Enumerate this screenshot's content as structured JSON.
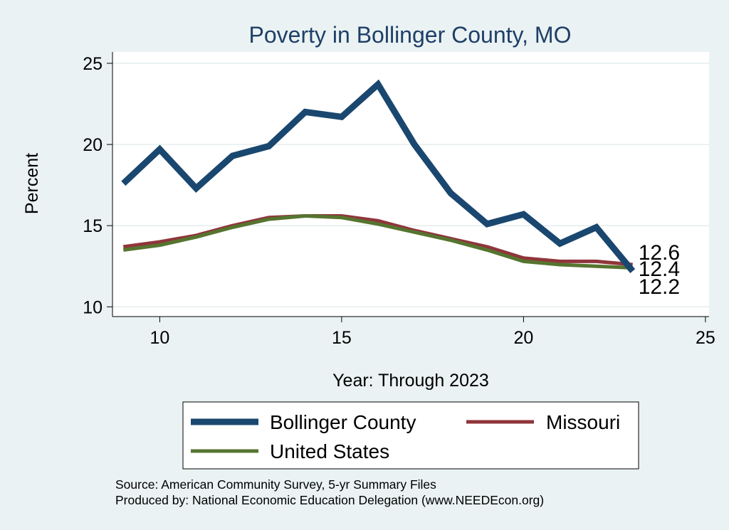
{
  "chart_data": {
    "type": "line",
    "title": "Poverty in Bollinger County, MO",
    "xlabel": "Year: Through 2023",
    "ylabel": "Percent",
    "x": [
      9,
      10,
      11,
      12,
      13,
      14,
      15,
      16,
      17,
      18,
      19,
      20,
      21,
      22,
      23
    ],
    "xlim": [
      8.7,
      25.1
    ],
    "ylim": [
      9.4,
      25.7
    ],
    "xticks": [
      10,
      15,
      20,
      25
    ],
    "yticks": [
      10,
      15,
      20,
      25
    ],
    "grid": true,
    "series": [
      {
        "name": "Bollinger County",
        "color": "#1a476f",
        "values": [
          17.6,
          19.7,
          17.3,
          19.3,
          19.9,
          22.0,
          21.7,
          23.7,
          20.0,
          17.0,
          15.1,
          15.7,
          13.9,
          14.9,
          12.2
        ]
      },
      {
        "name": "Missouri",
        "color": "#90353b",
        "values": [
          13.7,
          14.0,
          14.4,
          15.0,
          15.5,
          15.6,
          15.6,
          15.3,
          14.7,
          14.2,
          13.7,
          13.0,
          12.8,
          12.8,
          12.6
        ]
      },
      {
        "name": "United States",
        "color": "#55752f",
        "values": [
          13.5,
          13.8,
          14.3,
          14.9,
          15.4,
          15.6,
          15.5,
          15.1,
          14.6,
          14.1,
          13.5,
          12.8,
          12.6,
          12.5,
          12.4
        ]
      }
    ],
    "end_labels": [
      "12.6",
      "12.4",
      "12.2"
    ],
    "legend_position": "bottom",
    "notes": [
      "Source: American Community Survey, 5-yr Summary Files",
      "Produced by: National Economic Education Delegation (www.NEEDEcon.org)"
    ]
  }
}
